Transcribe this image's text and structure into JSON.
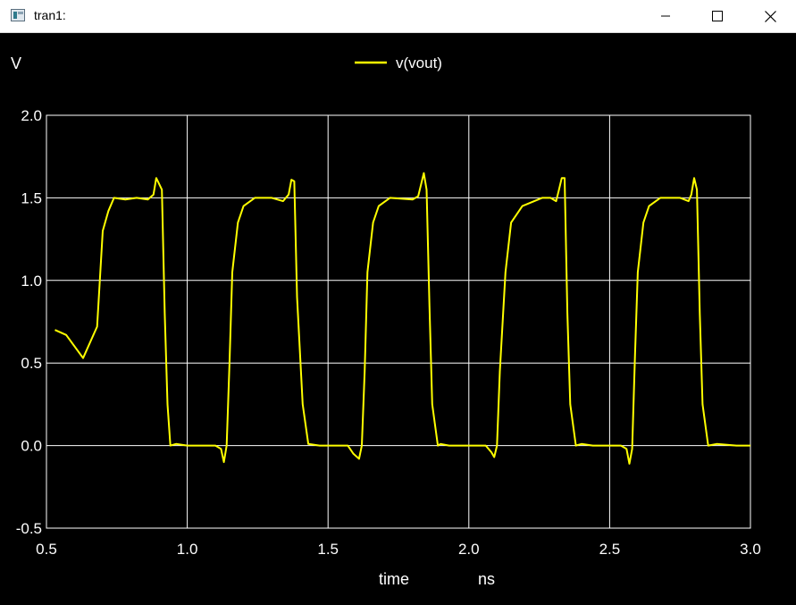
{
  "window": {
    "title": "tran1:",
    "buttons": [
      "minimize",
      "maximize",
      "close"
    ]
  },
  "chart_data": {
    "type": "line",
    "ylabel": "V",
    "xlabel": "time",
    "xunit": "ns",
    "xlim": [
      0.5,
      3.0
    ],
    "ylim": [
      -0.5,
      2.0
    ],
    "x_ticks": [
      "0.5",
      "1.0",
      "1.5",
      "2.0",
      "2.5",
      "3.0"
    ],
    "y_ticks": [
      "2.0",
      "1.5",
      "1.0",
      "0.5",
      "0.0",
      "-0.5"
    ],
    "grid": true,
    "legend_position": "top-center",
    "series": [
      {
        "name": "v(vout)",
        "color": "#ffff00",
        "x": [
          0.53,
          0.57,
          0.63,
          0.68,
          0.7,
          0.72,
          0.74,
          0.78,
          0.82,
          0.86,
          0.88,
          0.89,
          0.91,
          0.92,
          0.93,
          0.94,
          0.96,
          1.0,
          1.1,
          1.12,
          1.13,
          1.14,
          1.15,
          1.16,
          1.18,
          1.2,
          1.24,
          1.3,
          1.34,
          1.36,
          1.37,
          1.38,
          1.39,
          1.41,
          1.43,
          1.47,
          1.57,
          1.59,
          1.61,
          1.62,
          1.63,
          1.64,
          1.66,
          1.68,
          1.72,
          1.8,
          1.82,
          1.84,
          1.85,
          1.86,
          1.87,
          1.89,
          1.9,
          1.93,
          2.0,
          2.06,
          2.08,
          2.09,
          2.1,
          2.11,
          2.13,
          2.15,
          2.19,
          2.26,
          2.29,
          2.31,
          2.32,
          2.33,
          2.34,
          2.35,
          2.36,
          2.38,
          2.4,
          2.44,
          2.54,
          2.56,
          2.57,
          2.58,
          2.59,
          2.6,
          2.62,
          2.64,
          2.68,
          2.75,
          2.78,
          2.79,
          2.8,
          2.81,
          2.82,
          2.83,
          2.85,
          2.88,
          2.95,
          3.0
        ],
        "y": [
          0.7,
          0.67,
          0.53,
          0.72,
          1.3,
          1.42,
          1.5,
          1.49,
          1.5,
          1.49,
          1.52,
          1.62,
          1.55,
          0.8,
          0.25,
          0.0,
          0.01,
          0.0,
          0.0,
          -0.02,
          -0.1,
          0.0,
          0.5,
          1.05,
          1.35,
          1.45,
          1.5,
          1.5,
          1.48,
          1.52,
          1.61,
          1.6,
          0.9,
          0.25,
          0.01,
          0.0,
          0.0,
          -0.05,
          -0.08,
          0.0,
          0.45,
          1.05,
          1.35,
          1.45,
          1.5,
          1.49,
          1.51,
          1.65,
          1.55,
          0.85,
          0.25,
          0.0,
          0.01,
          0.0,
          0.0,
          0.0,
          -0.04,
          -0.07,
          0.0,
          0.45,
          1.05,
          1.35,
          1.45,
          1.5,
          1.5,
          1.48,
          1.55,
          1.62,
          1.62,
          0.8,
          0.25,
          0.0,
          0.01,
          0.0,
          0.0,
          -0.02,
          -0.11,
          -0.02,
          0.55,
          1.05,
          1.35,
          1.45,
          1.5,
          1.5,
          1.48,
          1.52,
          1.62,
          1.55,
          0.8,
          0.25,
          0.0,
          0.01,
          0.0,
          0.0
        ]
      }
    ]
  }
}
